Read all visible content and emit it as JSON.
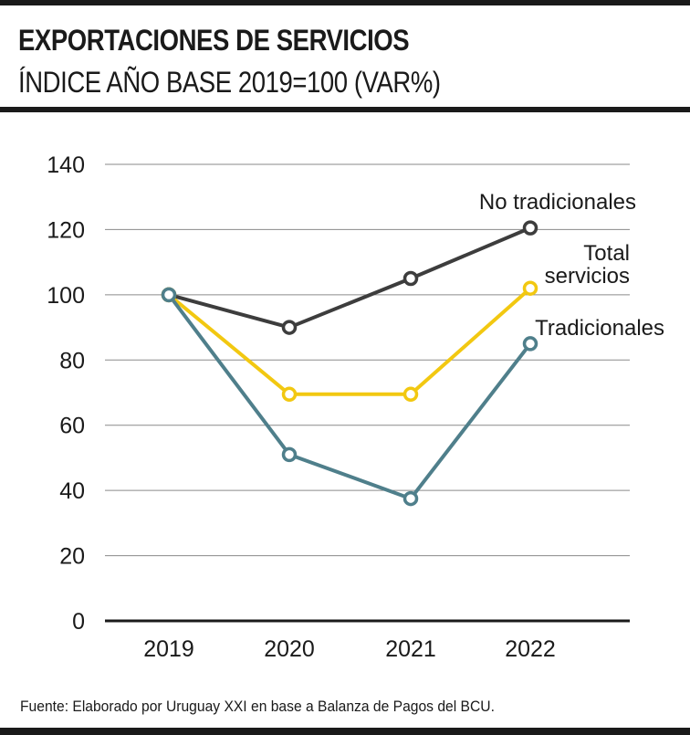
{
  "header": {
    "title": "EXPORTACIONES DE SERVICIOS",
    "subtitle": "ÍNDICE AÑO BASE 2019=100 (VAR%)"
  },
  "footnote": "Fuente: Elaborado por Uruguay XXI en base a Balanza de Pagos del BCU.",
  "chart_data": {
    "type": "line",
    "title": "EXPORTACIONES DE SERVICIOS",
    "subtitle": "ÍNDICE AÑO BASE 2019=100 (VAR%)",
    "xlabel": "",
    "ylabel": "",
    "ylim": [
      0,
      140
    ],
    "yticks": [
      "0",
      "20",
      "40",
      "60",
      "80",
      "100",
      "120",
      "140"
    ],
    "categories": [
      "2019",
      "2020",
      "2021",
      "2022"
    ],
    "grid": true,
    "legend": "inline labels at line ends (right)",
    "series": [
      {
        "name": "No tradicionales",
        "label_lines": [
          "No tradicionales"
        ],
        "color": "#3d3d3d",
        "values": [
          100,
          90,
          105,
          120.5
        ]
      },
      {
        "name": "Total servicios",
        "label_lines": [
          "Total",
          "servicios"
        ],
        "color": "#f2c811",
        "values": [
          100,
          69.5,
          69.5,
          102
        ]
      },
      {
        "name": "Tradicionales",
        "label_lines": [
          "Tradicionales"
        ],
        "color": "#4f7f8b",
        "values": [
          100,
          51,
          37.5,
          85
        ]
      }
    ]
  }
}
